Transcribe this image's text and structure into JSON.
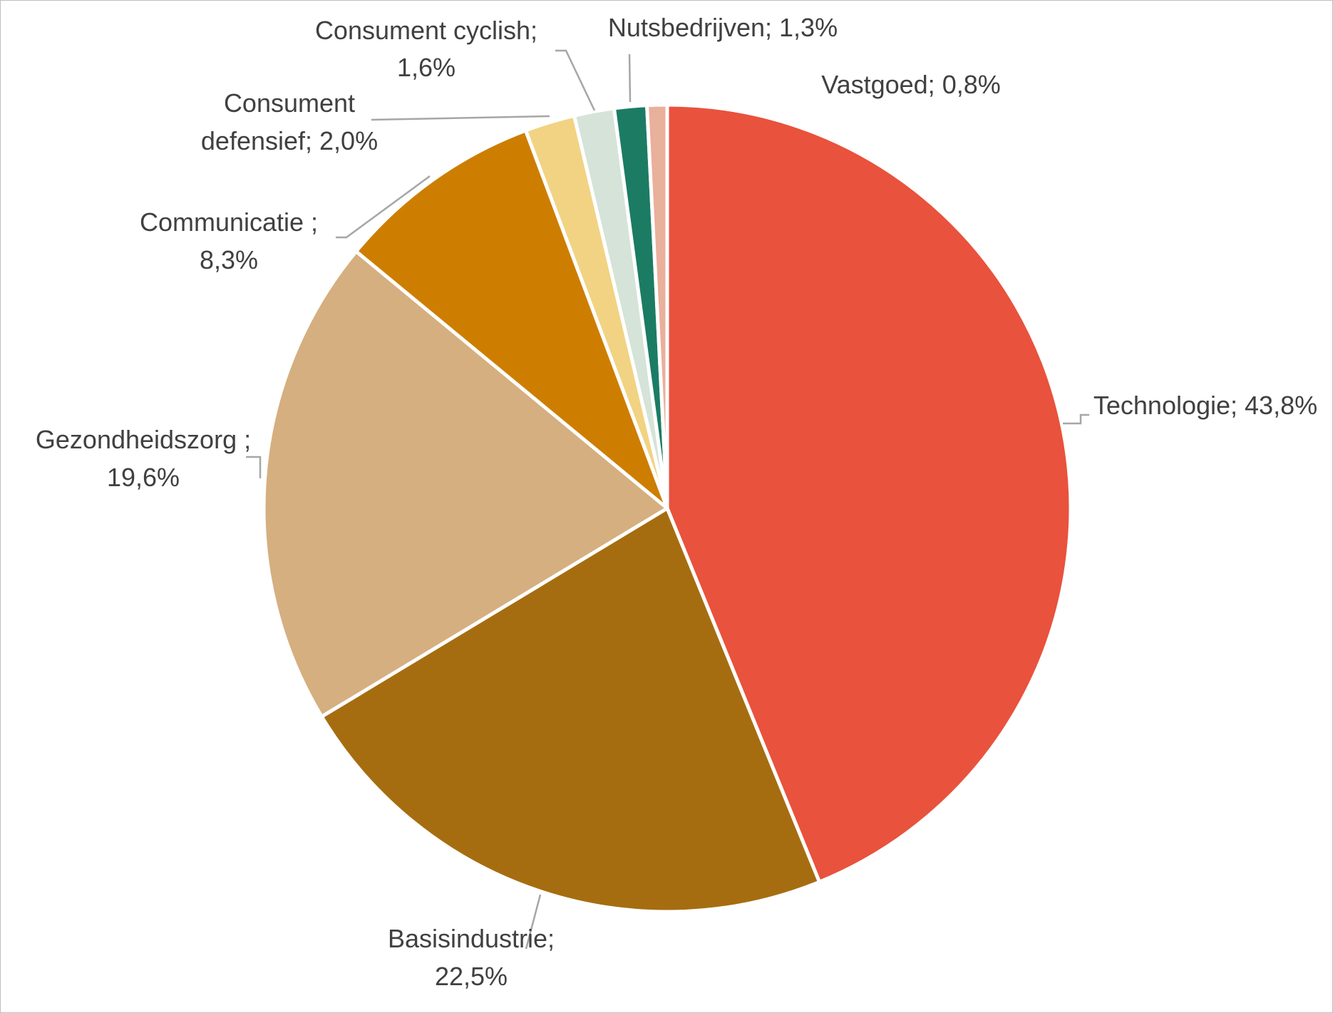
{
  "chart_data": {
    "type": "pie",
    "title": "",
    "start_angle_deg": 0,
    "direction": "clockwise",
    "legend": "none",
    "slices": [
      {
        "name": "Technologie",
        "value": 43.8,
        "label_lines": [
          "Technologie; 43,8%"
        ],
        "color": "#e9523c"
      },
      {
        "name": "Basisindustrie",
        "value": 22.5,
        "label_lines": [
          "Basisindustrie;",
          "22,5%"
        ],
        "color": "#a66d10"
      },
      {
        "name": "Gezondheidszorg",
        "value": 19.6,
        "label_lines": [
          "Gezondheidszorg ;",
          "19,6%"
        ],
        "color": "#d5af7f"
      },
      {
        "name": "Communicatie",
        "value": 8.3,
        "label_lines": [
          "Communicatie ;",
          "8,3%"
        ],
        "color": "#cd7e00"
      },
      {
        "name": "Consument defensief",
        "value": 2.0,
        "label_lines": [
          "Consument",
          "defensief; 2,0%"
        ],
        "color": "#f1d383"
      },
      {
        "name": "Consument cyclish",
        "value": 1.6,
        "label_lines": [
          "Consument cyclish;",
          "1,6%"
        ],
        "color": "#d6e3d8"
      },
      {
        "name": "Nutsbedrijven",
        "value": 1.3,
        "label_lines": [
          "Nutsbedrijven; 1,3%"
        ],
        "color": "#1b7c63"
      },
      {
        "name": "Vastgoed",
        "value": 0.8,
        "label_lines": [
          "Vastgoed; 0,8%"
        ],
        "color": "#e9b09c"
      }
    ]
  }
}
